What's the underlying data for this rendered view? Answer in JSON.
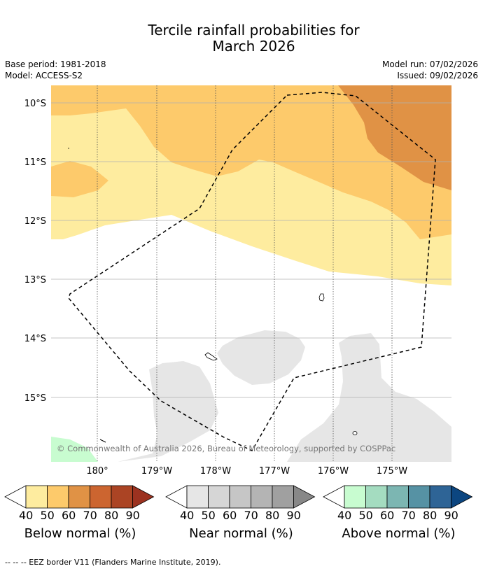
{
  "title_line1": "Tercile rainfall probabilities for",
  "title_line2": "March 2026",
  "meta": {
    "base_period": "Base period: 1981-2018",
    "model": "Model: ACCESS-S2",
    "model_run": "Model run: 07/02/2026",
    "issued": "Issued: 09/02/2026"
  },
  "map": {
    "lat_labels": [
      "10°S",
      "11°S",
      "12°S",
      "13°S",
      "14°S",
      "15°S"
    ],
    "lon_labels": [
      "180°",
      "179°W",
      "178°W",
      "177°W",
      "176°W",
      "175°W"
    ],
    "copyright": "© Commonwealth of Australia 2026, Bureau of Meteorology, supported by COSPPac",
    "colors": {
      "below_50_60": "#feec9f",
      "below_60_70": "#fdca6b",
      "below_70_80": "#e09245",
      "near_40_50": "#e6e6e6",
      "above_40_50": "#c8fcd0",
      "land": "#ffffff",
      "eez": "#000000"
    }
  },
  "colorbars": [
    {
      "title": "Below normal (%)",
      "ticks": [
        "40",
        "50",
        "60",
        "70",
        "80",
        "90"
      ],
      "colors": [
        "#ffffff",
        "#feec9f",
        "#fdca6b",
        "#e09245",
        "#cc6530",
        "#ab4424",
        "#9c3220"
      ]
    },
    {
      "title": "Near normal (%)",
      "ticks": [
        "40",
        "50",
        "60",
        "70",
        "80",
        "90"
      ],
      "colors": [
        "#ffffff",
        "#e6e6e6",
        "#d6d6d6",
        "#c6c6c6",
        "#b4b4b4",
        "#a0a0a0",
        "#888888"
      ]
    },
    {
      "title": "Above normal (%)",
      "ticks": [
        "40",
        "50",
        "60",
        "70",
        "80",
        "90"
      ],
      "colors": [
        "#ffffff",
        "#c8fcd0",
        "#a4dcc0",
        "#7cb6b2",
        "#5692a4",
        "#2e6496",
        "#0c4680"
      ]
    }
  ],
  "footer": "--  --  -- EEZ border V11 (Flanders Marine Institute, 2019)."
}
